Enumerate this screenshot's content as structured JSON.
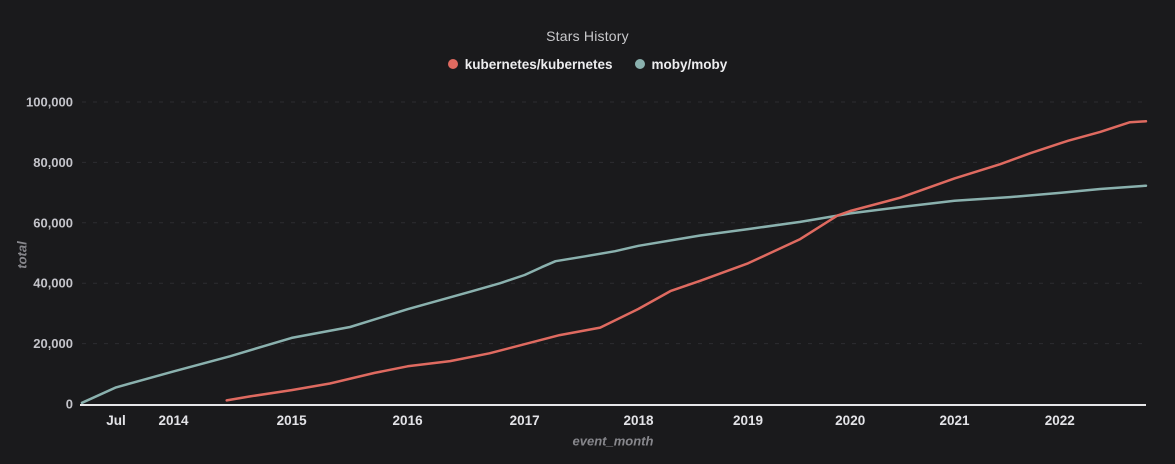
{
  "chart": {
    "title": "Stars History"
  },
  "chart_data": {
    "type": "line",
    "title": "Stars History",
    "xlabel": "event_month",
    "ylabel": "total",
    "legend_position": "top-center",
    "grid": "horizontal dashed gridlines at each y tick, no vertical gridlines, solid bright x-axis line",
    "x_axis": {
      "note": "time axis of monthly star totals; tick pos is fraction across plot width",
      "ticks": [
        {
          "pos": 0.032,
          "label": "Jul"
        },
        {
          "pos": 0.086,
          "label": "2014"
        },
        {
          "pos": 0.197,
          "label": "2015"
        },
        {
          "pos": 0.306,
          "label": "2016"
        },
        {
          "pos": 0.416,
          "label": "2017"
        },
        {
          "pos": 0.523,
          "label": "2018"
        },
        {
          "pos": 0.626,
          "label": "2019"
        },
        {
          "pos": 0.722,
          "label": "2020"
        },
        {
          "pos": 0.82,
          "label": "2021"
        },
        {
          "pos": 0.919,
          "label": "2022"
        }
      ]
    },
    "y_axis": {
      "min": 0,
      "max": 100000,
      "ticks": [
        {
          "value": 0,
          "label": "0"
        },
        {
          "value": 20000,
          "label": "20,000"
        },
        {
          "value": 40000,
          "label": "40,000"
        },
        {
          "value": 60000,
          "label": "60,000"
        },
        {
          "value": 80000,
          "label": "80,000"
        },
        {
          "value": 100000,
          "label": "100,000"
        }
      ]
    },
    "series": [
      {
        "name": "kubernetes/kubernetes",
        "color": "#df6a60",
        "points": [
          [
            0.136,
            1200
          ],
          [
            0.158,
            2500
          ],
          [
            0.197,
            4600
          ],
          [
            0.233,
            6800
          ],
          [
            0.275,
            10300
          ],
          [
            0.306,
            12500
          ],
          [
            0.346,
            14200
          ],
          [
            0.383,
            16800
          ],
          [
            0.416,
            19800
          ],
          [
            0.449,
            22800
          ],
          [
            0.487,
            25300
          ],
          [
            0.523,
            31500
          ],
          [
            0.553,
            37400
          ],
          [
            0.581,
            40800
          ],
          [
            0.626,
            46600
          ],
          [
            0.675,
            54600
          ],
          [
            0.71,
            62400
          ],
          [
            0.722,
            63900
          ],
          [
            0.769,
            68300
          ],
          [
            0.82,
            74700
          ],
          [
            0.863,
            79400
          ],
          [
            0.891,
            83000
          ],
          [
            0.919,
            86300
          ],
          [
            0.927,
            87200
          ],
          [
            0.957,
            90100
          ],
          [
            0.985,
            93300
          ],
          [
            1.0,
            93600
          ]
        ]
      },
      {
        "name": "moby/moby",
        "color": "#8ab1ae",
        "points": [
          [
            0.0,
            400
          ],
          [
            0.032,
            5500
          ],
          [
            0.086,
            10800
          ],
          [
            0.139,
            15800
          ],
          [
            0.197,
            21900
          ],
          [
            0.252,
            25500
          ],
          [
            0.306,
            31400
          ],
          [
            0.365,
            37200
          ],
          [
            0.393,
            40000
          ],
          [
            0.416,
            42700
          ],
          [
            0.432,
            45300
          ],
          [
            0.445,
            47300
          ],
          [
            0.473,
            48900
          ],
          [
            0.501,
            50600
          ],
          [
            0.523,
            52400
          ],
          [
            0.581,
            55800
          ],
          [
            0.626,
            57900
          ],
          [
            0.675,
            60300
          ],
          [
            0.71,
            62400
          ],
          [
            0.722,
            63100
          ],
          [
            0.769,
            65200
          ],
          [
            0.82,
            67300
          ],
          [
            0.872,
            68500
          ],
          [
            0.919,
            69900
          ],
          [
            0.957,
            71200
          ],
          [
            1.0,
            72300
          ]
        ]
      }
    ]
  },
  "style": {
    "background": "#1a1a1c",
    "title_color": "#c9c9cc",
    "legend_text_color": "#ededef",
    "x_tick_color": "#e3e3e7",
    "y_tick_color": "#c4c4ca",
    "axis_name_color": "#87878c",
    "grid_color": "#2c2c30",
    "axis_line_color": "#e6e6e8",
    "series_colors": [
      "#df6a60",
      "#8ab1ae"
    ]
  }
}
